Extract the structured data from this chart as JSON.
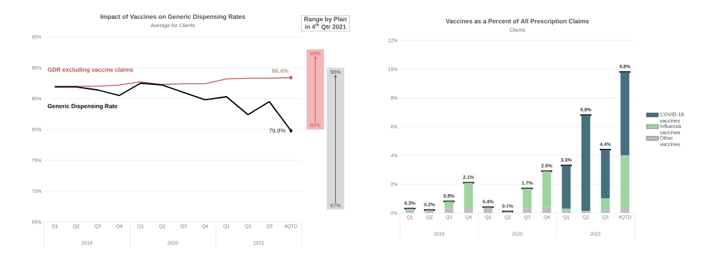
{
  "chart_data": [
    {
      "type": "line",
      "title": "Impact of Vaccines on Generic Dispensing Rates",
      "subtitle": "Average for Clients",
      "categories": [
        "Q1",
        "Q2",
        "Q3",
        "Q4",
        "Q1",
        "Q2",
        "Q3",
        "Q4",
        "Q1",
        "Q2",
        "Q3",
        "4QTD"
      ],
      "series": [
        {
          "name": "GDR excluding vaccine claims",
          "color": "#c0504d",
          "values": [
            87.0,
            87.0,
            87.0,
            87.2,
            87.7,
            87.3,
            87.4,
            87.4,
            88.2,
            88.3,
            88.3,
            88.4
          ]
        },
        {
          "name": "Generic Dispensing Rate",
          "color": "#000000",
          "values": [
            86.9,
            86.9,
            86.4,
            85.5,
            87.5,
            87.2,
            86.0,
            84.8,
            85.3,
            82.4,
            84.5,
            79.8
          ]
        }
      ],
      "ylim": [
        65,
        95
      ],
      "yticks": [
        {
          "value": 65,
          "label": "65%"
        },
        {
          "value": 70,
          "label": "70%"
        },
        {
          "value": 75,
          "label": "75%"
        },
        {
          "value": 80,
          "label": "80%"
        },
        {
          "value": 85,
          "label": "85%"
        },
        {
          "value": 90,
          "label": "90%"
        },
        {
          "value": 95,
          "label": "95%"
        }
      ],
      "grid": "y",
      "marker": "none",
      "line_style": "solid",
      "annotations": [
        "2019",
        "2020",
        "2021",
        {
          "text": "88.4%",
          "x": "4QTD",
          "y": 88.4
        },
        {
          "text": "79.8%",
          "x": "4QTD",
          "y": 79.8
        }
      ]
    },
    {
      "type": "bar",
      "title": "Range by Plan in 4$^{th}$ Qtr 2021",
      "categories": [
        null,
        null
      ],
      "base": [
        80,
        67
      ],
      "values": [
        13,
        23
      ],
      "colors": [
        "#f2b8b9",
        "#d9d9d9"
      ],
      "value_labels": [
        "93%",
        "90%"
      ],
      "ylim": [
        65,
        95
      ],
      "annotations": [
        {
          "text": "80%",
          "y": 80
        },
        {
          "text": "67%",
          "y": 67
        }
      ]
    },
    {
      "type": "bar",
      "title": "Vaccines as a Percent of All Prescription Claims",
      "subtitle": "Clients",
      "categories": [
        "Q1",
        "Q2",
        "Q3",
        "Q4",
        "Q1",
        "Q2",
        "Q3",
        "Q4",
        "Q1",
        "Q2",
        "Q3",
        "4QTD"
      ],
      "stacked": true,
      "series": [
        {
          "name": "Other vaccines",
          "color": "#bfbfbf",
          "values": [
            0.2,
            0.2,
            0.3,
            0.35,
            0.35,
            0.1,
            0.3,
            0.4,
            0.2,
            0.15,
            0.2,
            0.3
          ]
        },
        {
          "name": "Influenza vaccines",
          "color": "#9dd49f",
          "values": [
            0.1,
            0,
            0.5,
            1.75,
            0.05,
            0,
            1.4,
            2.5,
            0.1,
            0,
            0.8,
            3.7
          ]
        },
        {
          "name": "COVID-19 vaccines",
          "color": "#46707f",
          "values": [
            0,
            0,
            0,
            0,
            0,
            0,
            0,
            0,
            3.0,
            6.65,
            3.4,
            5.8
          ]
        }
      ],
      "totals": [
        "0.3%",
        "0.2%",
        "0.8%",
        "2.1%",
        "0.4%",
        "0.1%",
        "1.7%",
        "2.9%",
        "3.3%",
        "6.8%",
        "4.4%",
        "9.8%"
      ],
      "ylim": [
        0,
        12
      ],
      "yticks": [
        {
          "value": 0,
          "label": "0%"
        },
        {
          "value": 2,
          "label": "2%"
        },
        {
          "value": 4,
          "label": "4%"
        },
        {
          "value": 6,
          "label": "6%"
        },
        {
          "value": 8,
          "label": "8%"
        },
        {
          "value": 10,
          "label": "10%"
        },
        {
          "value": 12,
          "label": "12%"
        }
      ],
      "grid": "y",
      "legend": "right",
      "annotations": [
        "2019",
        "2020",
        "2021"
      ]
    }
  ]
}
